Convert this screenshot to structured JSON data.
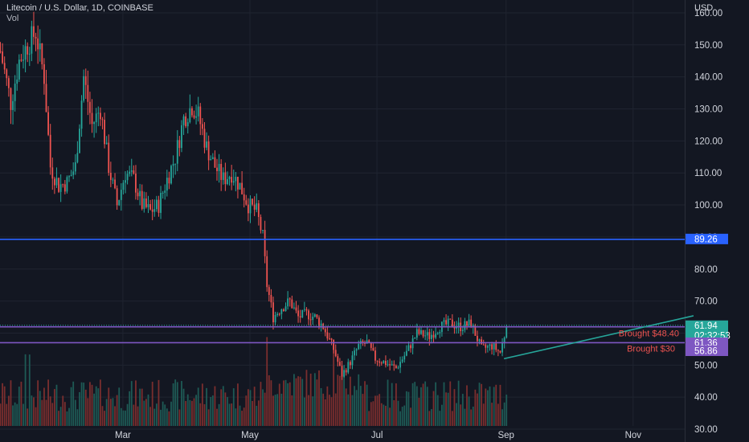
{
  "legend": {
    "title": "Litecoin / U.S. Dollar, 1D, COINBASE",
    "vol": "Vol"
  },
  "currency": "USD",
  "colors": {
    "bg": "#131722",
    "grid": "#1f2430",
    "axis_text": "#d1d4dc",
    "up": "#26a69a",
    "down": "#ef5350",
    "vol_up": "#1e5a55",
    "vol_down": "#7a2e2e",
    "resistance_line": "#2962ff",
    "price_line": "#7e57c2",
    "trend_line": "#26a69a",
    "label_text": "#ef5350",
    "current_price": "#26a69a"
  },
  "chart_data": {
    "type": "candlestick",
    "title": "Litecoin / U.S. Dollar, 1D, COINBASE",
    "y_axis": {
      "range": [
        28.5,
        163.5
      ],
      "ticks": [
        "160.00",
        "150.00",
        "140.00",
        "130.00",
        "120.00",
        "110.00",
        "100.00",
        "90.00",
        "80.00",
        "70.00",
        "60.00",
        "50.00",
        "40.00",
        "30.00"
      ]
    },
    "x_axis": {
      "range": [
        "2022-01-01",
        "2022-11-25"
      ],
      "ticks": [
        {
          "label": "Mar",
          "date": "2022-03-01"
        },
        {
          "label": "May",
          "date": "2022-05-01"
        },
        {
          "label": "Jul",
          "date": "2022-07-01"
        },
        {
          "label": "Sep",
          "date": "2022-09-01"
        },
        {
          "label": "Nov",
          "date": "2022-11-01"
        }
      ]
    },
    "close_path": [
      [
        "2022-01-01",
        148
      ],
      [
        "2022-01-06",
        132
      ],
      [
        "2022-01-10",
        145
      ],
      [
        "2022-01-14",
        150
      ],
      [
        "2022-01-18",
        154
      ],
      [
        "2022-01-22",
        140
      ],
      [
        "2022-01-25",
        112
      ],
      [
        "2022-01-29",
        106
      ],
      [
        "2022-02-02",
        107
      ],
      [
        "2022-02-06",
        112
      ],
      [
        "2022-02-10",
        140
      ],
      [
        "2022-02-14",
        125
      ],
      [
        "2022-02-18",
        130
      ],
      [
        "2022-02-22",
        112
      ],
      [
        "2022-02-26",
        100
      ],
      [
        "2022-03-02",
        110
      ],
      [
        "2022-03-06",
        108
      ],
      [
        "2022-03-10",
        100
      ],
      [
        "2022-03-14",
        98
      ],
      [
        "2022-03-18",
        100
      ],
      [
        "2022-03-22",
        108
      ],
      [
        "2022-03-26",
        115
      ],
      [
        "2022-03-30",
        127
      ],
      [
        "2022-04-03",
        131
      ],
      [
        "2022-04-06",
        128
      ],
      [
        "2022-04-10",
        118
      ],
      [
        "2022-04-14",
        112
      ],
      [
        "2022-04-18",
        108
      ],
      [
        "2022-04-22",
        110
      ],
      [
        "2022-04-26",
        106
      ],
      [
        "2022-04-30",
        100
      ],
      [
        "2022-05-04",
        98
      ],
      [
        "2022-05-07",
        90
      ],
      [
        "2022-05-09",
        75
      ],
      [
        "2022-05-12",
        65
      ],
      [
        "2022-05-16",
        68
      ],
      [
        "2022-05-20",
        70
      ],
      [
        "2022-05-24",
        65
      ],
      [
        "2022-05-28",
        66
      ],
      [
        "2022-06-01",
        65
      ],
      [
        "2022-06-05",
        62
      ],
      [
        "2022-06-10",
        55
      ],
      [
        "2022-06-14",
        47
      ],
      [
        "2022-06-18",
        51
      ],
      [
        "2022-06-22",
        56
      ],
      [
        "2022-06-26",
        57
      ],
      [
        "2022-06-30",
        52
      ],
      [
        "2022-07-04",
        51
      ],
      [
        "2022-07-10",
        49
      ],
      [
        "2022-07-15",
        54
      ],
      [
        "2022-07-20",
        60
      ],
      [
        "2022-07-26",
        59
      ],
      [
        "2022-07-31",
        62
      ],
      [
        "2022-08-05",
        63
      ],
      [
        "2022-08-10",
        62
      ],
      [
        "2022-08-15",
        63
      ],
      [
        "2022-08-20",
        55
      ],
      [
        "2022-08-25",
        56
      ],
      [
        "2022-08-29",
        54
      ],
      [
        "2022-09-01",
        62
      ]
    ],
    "horizontal_lines": [
      {
        "name": "resistance",
        "price": 89.26,
        "label": "89.26"
      },
      {
        "name": "upper-purple",
        "price": 61.94,
        "label": "Brought $48.40"
      },
      {
        "name": "lower-purple",
        "price": 57.0,
        "label": "Brought $30"
      }
    ],
    "trend_line": {
      "from": [
        "2022-08-31",
        52.0
      ],
      "to": [
        "2022-11-30",
        65.4
      ]
    },
    "price_labels": [
      {
        "name": "price-label-resistance",
        "value": "89.26",
        "price": 89.26,
        "color": "#2962ff"
      },
      {
        "name": "price-label-current",
        "value": "61.94",
        "sub": "02:32:53",
        "price": 61.94,
        "color": "#26a69a"
      },
      {
        "name": "price-label-61",
        "value": "61.36",
        "price": 61.36,
        "color": "#7e57c2"
      },
      {
        "name": "price-label-56",
        "value": "56.86",
        "price": 56.86,
        "color": "#7e57c2"
      }
    ]
  }
}
